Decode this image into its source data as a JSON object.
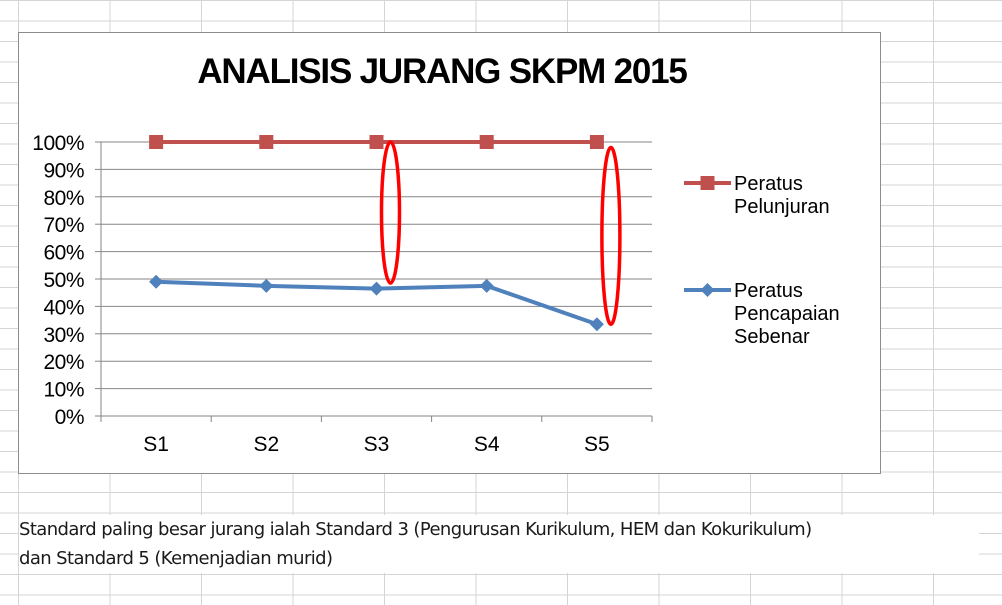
{
  "chart_data": {
    "type": "line",
    "title": "ANALISIS JURANG SKPM 2015",
    "categories": [
      "S1",
      "S2",
      "S3",
      "S4",
      "S5"
    ],
    "ylim": [
      0,
      1
    ],
    "yticks": [
      "0%",
      "10%",
      "20%",
      "30%",
      "40%",
      "50%",
      "60%",
      "70%",
      "80%",
      "90%",
      "100%"
    ],
    "grid": true,
    "legend": "right",
    "series": [
      {
        "name": "Peratus Pelunjuran",
        "name_lines": [
          "Peratus",
          "Pelunjuran"
        ],
        "values": [
          1.0,
          1.0,
          1.0,
          1.0,
          1.0
        ],
        "color": "#c0504d",
        "marker": "square"
      },
      {
        "name": "Peratus Pencapaian Sebenar",
        "name_lines": [
          "Peratus",
          "Pencapaian",
          "Sebenar"
        ],
        "values": [
          0.49,
          0.475,
          0.465,
          0.475,
          0.335
        ],
        "color": "#4f81bd",
        "marker": "diamond"
      }
    ],
    "annotations": [
      {
        "type": "ellipse",
        "category": "S3",
        "from": 0.485,
        "to": 1.0,
        "color": "#ff0000"
      },
      {
        "type": "ellipse",
        "category": "S5",
        "from": 0.335,
        "to": 0.98,
        "color": "#ff0000"
      }
    ]
  },
  "caption": {
    "line1": "Standard paling besar jurang ialah Standard 3 (Pengurusan Kurikulum, HEM dan Kokurikulum)",
    "line2": "dan Standard 5 (Kemenjadian murid)"
  }
}
